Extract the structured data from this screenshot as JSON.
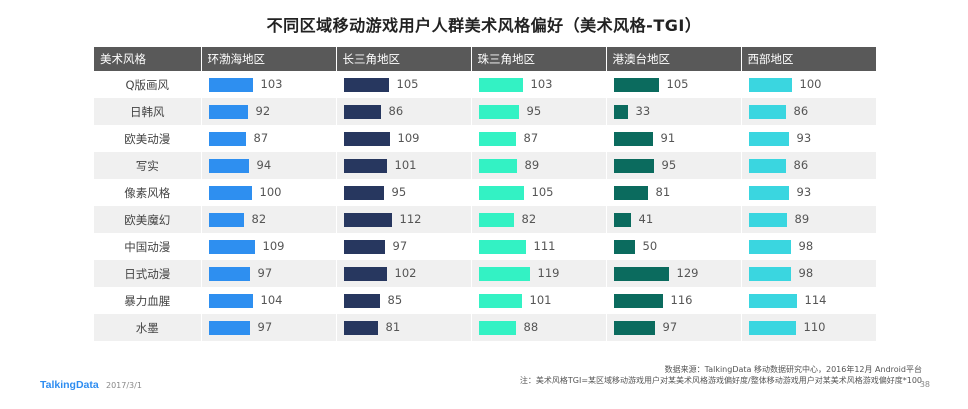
{
  "chart_data": {
    "type": "table",
    "title": "不同区域移动游戏用户人群美术风格偏好（美术风格-TGI）",
    "header_label": "美术风格",
    "regions": [
      "环渤海地区",
      "长三角地区",
      "珠三角地区",
      "港澳台地区",
      "西部地区"
    ],
    "colors": [
      "#2e8ff0",
      "#27375f",
      "#33f2c4",
      "#0b6b5e",
      "#3ad6e0"
    ],
    "categories": [
      "Q版画风",
      "日韩风",
      "欧美动漫",
      "写实",
      "像素风格",
      "欧美魔幻",
      "中国动漫",
      "日式动漫",
      "暴力血腥",
      "水墨"
    ],
    "series": [
      {
        "name": "环渤海地区",
        "values": [
          103,
          92,
          87,
          94,
          100,
          82,
          109,
          97,
          104,
          97
        ]
      },
      {
        "name": "长三角地区",
        "values": [
          105,
          86,
          109,
          101,
          95,
          112,
          97,
          102,
          85,
          81
        ]
      },
      {
        "name": "珠三角地区",
        "values": [
          103,
          95,
          87,
          89,
          105,
          82,
          111,
          119,
          101,
          88
        ]
      },
      {
        "name": "港澳台地区",
        "values": [
          105,
          33,
          91,
          95,
          81,
          41,
          50,
          129,
          116,
          97
        ]
      },
      {
        "name": "西部地区",
        "values": [
          100,
          86,
          93,
          86,
          93,
          89,
          98,
          98,
          114,
          110
        ]
      }
    ]
  },
  "footer": {
    "source": "数据来源：TalkingData 移动数据研究中心，2016年12月 Android平台",
    "note": "注：美术风格TGI=某区域移动游戏用户对某美术风格游戏偏好度/整体移动游戏用户对某美术风格游戏偏好度*100",
    "logo": "TalkingData",
    "date": "2017/3/1",
    "page": "38"
  }
}
